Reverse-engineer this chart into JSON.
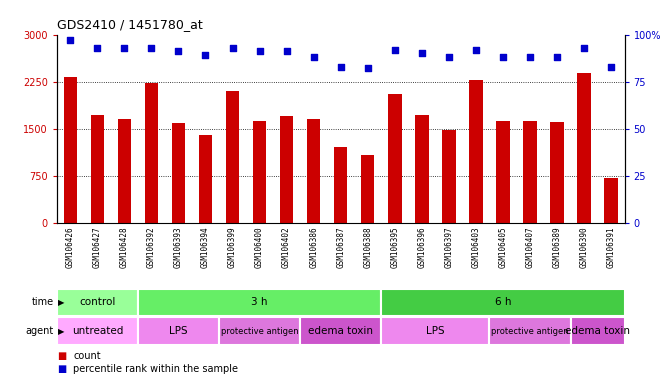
{
  "title": "GDS2410 / 1451780_at",
  "samples": [
    "GSM106426",
    "GSM106427",
    "GSM106428",
    "GSM106392",
    "GSM106393",
    "GSM106394",
    "GSM106399",
    "GSM106400",
    "GSM106402",
    "GSM106386",
    "GSM106387",
    "GSM106388",
    "GSM106395",
    "GSM106396",
    "GSM106397",
    "GSM106403",
    "GSM106405",
    "GSM106407",
    "GSM106389",
    "GSM106390",
    "GSM106391"
  ],
  "counts": [
    2320,
    1720,
    1650,
    2230,
    1590,
    1400,
    2100,
    1620,
    1700,
    1650,
    1200,
    1080,
    2050,
    1720,
    1480,
    2270,
    1620,
    1620,
    1600,
    2380,
    720
  ],
  "percentile": [
    97,
    93,
    93,
    93,
    91,
    89,
    93,
    91,
    91,
    88,
    83,
    82,
    92,
    90,
    88,
    92,
    88,
    88,
    88,
    93,
    83
  ],
  "bar_color": "#cc0000",
  "dot_color": "#0000cc",
  "ylim_left": [
    0,
    3000
  ],
  "ylim_right": [
    0,
    100
  ],
  "yticks_left": [
    0,
    750,
    1500,
    2250,
    3000
  ],
  "yticks_right": [
    0,
    25,
    50,
    75,
    100
  ],
  "ytick_labels_left": [
    "0",
    "750",
    "1500",
    "2250",
    "3000"
  ],
  "ytick_labels_right": [
    "0",
    "25",
    "50",
    "75",
    "100%"
  ],
  "time_groups": [
    {
      "label": "control",
      "start": 0,
      "end": 3,
      "color": "#99ff99"
    },
    {
      "label": "3 h",
      "start": 3,
      "end": 12,
      "color": "#66ee66"
    },
    {
      "label": "6 h",
      "start": 12,
      "end": 21,
      "color": "#44cc44"
    }
  ],
  "agent_groups": [
    {
      "label": "untreated",
      "start": 0,
      "end": 3,
      "color": "#ffaaff"
    },
    {
      "label": "LPS",
      "start": 3,
      "end": 6,
      "color": "#ee88ee"
    },
    {
      "label": "protective antigen",
      "start": 6,
      "end": 9,
      "color": "#dd77dd"
    },
    {
      "label": "edema toxin",
      "start": 9,
      "end": 12,
      "color": "#cc55cc"
    },
    {
      "label": "LPS",
      "start": 12,
      "end": 16,
      "color": "#ee88ee"
    },
    {
      "label": "protective antigen",
      "start": 16,
      "end": 19,
      "color": "#dd77dd"
    },
    {
      "label": "edema toxin",
      "start": 19,
      "end": 21,
      "color": "#cc55cc"
    }
  ],
  "xtick_bg_color": "#cccccc",
  "legend_count_color": "#cc0000",
  "legend_dot_color": "#0000cc"
}
